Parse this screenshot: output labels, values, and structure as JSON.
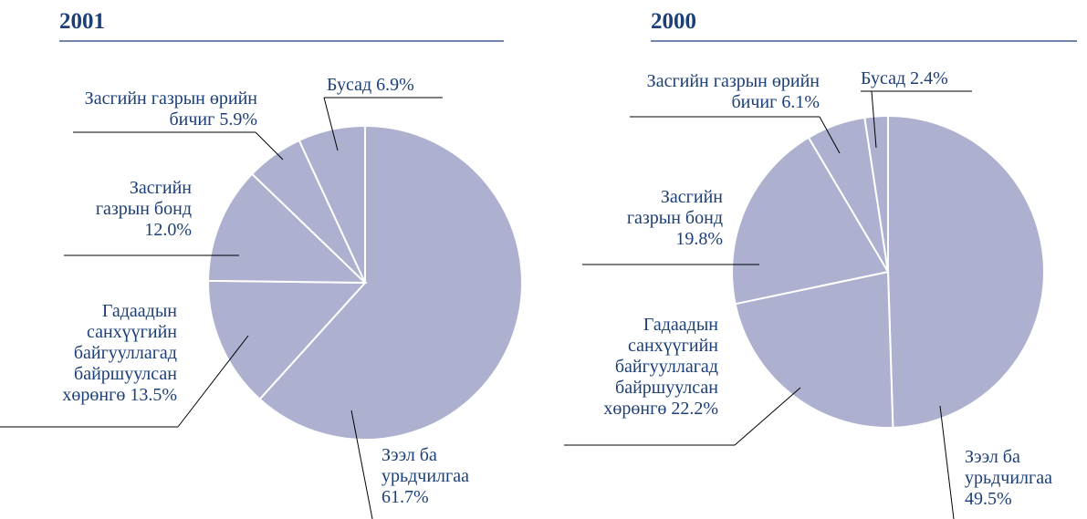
{
  "chart_data": [
    {
      "type": "pie",
      "title": "2001",
      "categories": [
        "Зээл ба урьдчилгаа",
        "Гадаадын санхүүгийн байгууллагад байршуулсан хөрөнгө",
        "Засгийн газрын бонд",
        "Засгийн газрын өрийн бичиг",
        "Бусад"
      ],
      "values": [
        61.7,
        13.5,
        12.0,
        5.9,
        6.9
      ],
      "value_labels": [
        "61.7%",
        "13.5%",
        "12.0%",
        "5.9%",
        "6.9%"
      ],
      "color": "#adb0cf"
    },
    {
      "type": "pie",
      "title": "2000",
      "categories": [
        "Зээл ба урьдчилгаа",
        "Гадаадын санхүүгийн байгууллагад байршуулсан хөрөнгө",
        "Засгийн газрын бонд",
        "Засгийн газрын өрийн бичиг",
        "Бусад"
      ],
      "values": [
        49.5,
        22.2,
        19.8,
        6.1,
        2.4
      ],
      "value_labels": [
        "49.5%",
        "22.2%",
        "19.8%",
        "6.1%",
        "2.4%"
      ],
      "color": "#adb0cf"
    }
  ]
}
